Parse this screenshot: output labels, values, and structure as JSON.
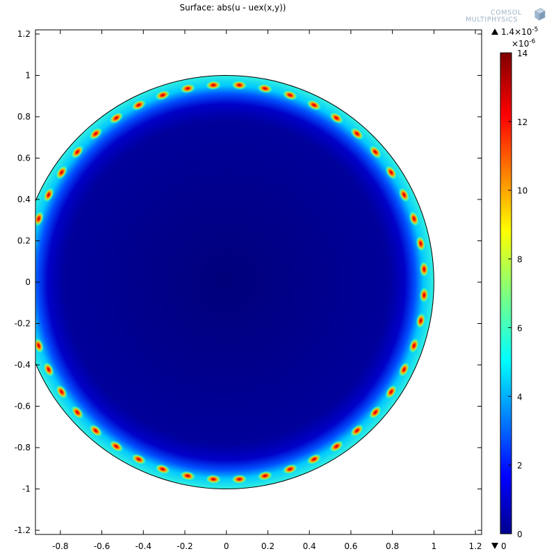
{
  "chart_data": {
    "type": "heatmap",
    "title": "Surface: abs(u - uex(x,y))",
    "xlim": [
      -0.92,
      1.23
    ],
    "ylim": [
      -1.22,
      1.22
    ],
    "x_ticks": [
      "-0.8",
      "-0.6",
      "-0.4",
      "-0.2",
      "0",
      "0.2",
      "0.4",
      "0.6",
      "0.8",
      "1",
      "1.2"
    ],
    "x_tick_values": [
      -0.8,
      -0.6,
      -0.4,
      -0.2,
      0,
      0.2,
      0.4,
      0.6,
      0.8,
      1,
      1.2
    ],
    "y_ticks": [
      "1.2",
      "1",
      "0.8",
      "0.6",
      "0.4",
      "0.2",
      "0",
      "-0.2",
      "-0.4",
      "-0.6",
      "-0.8",
      "-1",
      "-1.2"
    ],
    "y_tick_values": [
      1.2,
      1,
      0.8,
      0.6,
      0.4,
      0.2,
      0,
      -0.2,
      -0.4,
      -0.6,
      -0.8,
      -1,
      -1.2
    ],
    "domain": {
      "shape": "disk",
      "center": [
        0,
        0
      ],
      "radius": 1
    },
    "boundary_hotspots": 48,
    "colorbar": {
      "colormap": "jet",
      "min": 0,
      "max": 14,
      "scale_label": "×10",
      "scale_exp": "-6",
      "ticks": [
        "0",
        "2",
        "4",
        "6",
        "8",
        "10",
        "12",
        "14"
      ],
      "tick_values": [
        0,
        2,
        4,
        6,
        8,
        10,
        12,
        14
      ],
      "max_marker": "1.4×10",
      "max_marker_exp": "-5",
      "min_marker": "0"
    },
    "grid": false
  },
  "logo": {
    "line1": "COMSOL",
    "line2": "MULTIPHYSICS"
  },
  "colors": {
    "low": "#000080",
    "high": "#800000",
    "axes": "#000000"
  }
}
